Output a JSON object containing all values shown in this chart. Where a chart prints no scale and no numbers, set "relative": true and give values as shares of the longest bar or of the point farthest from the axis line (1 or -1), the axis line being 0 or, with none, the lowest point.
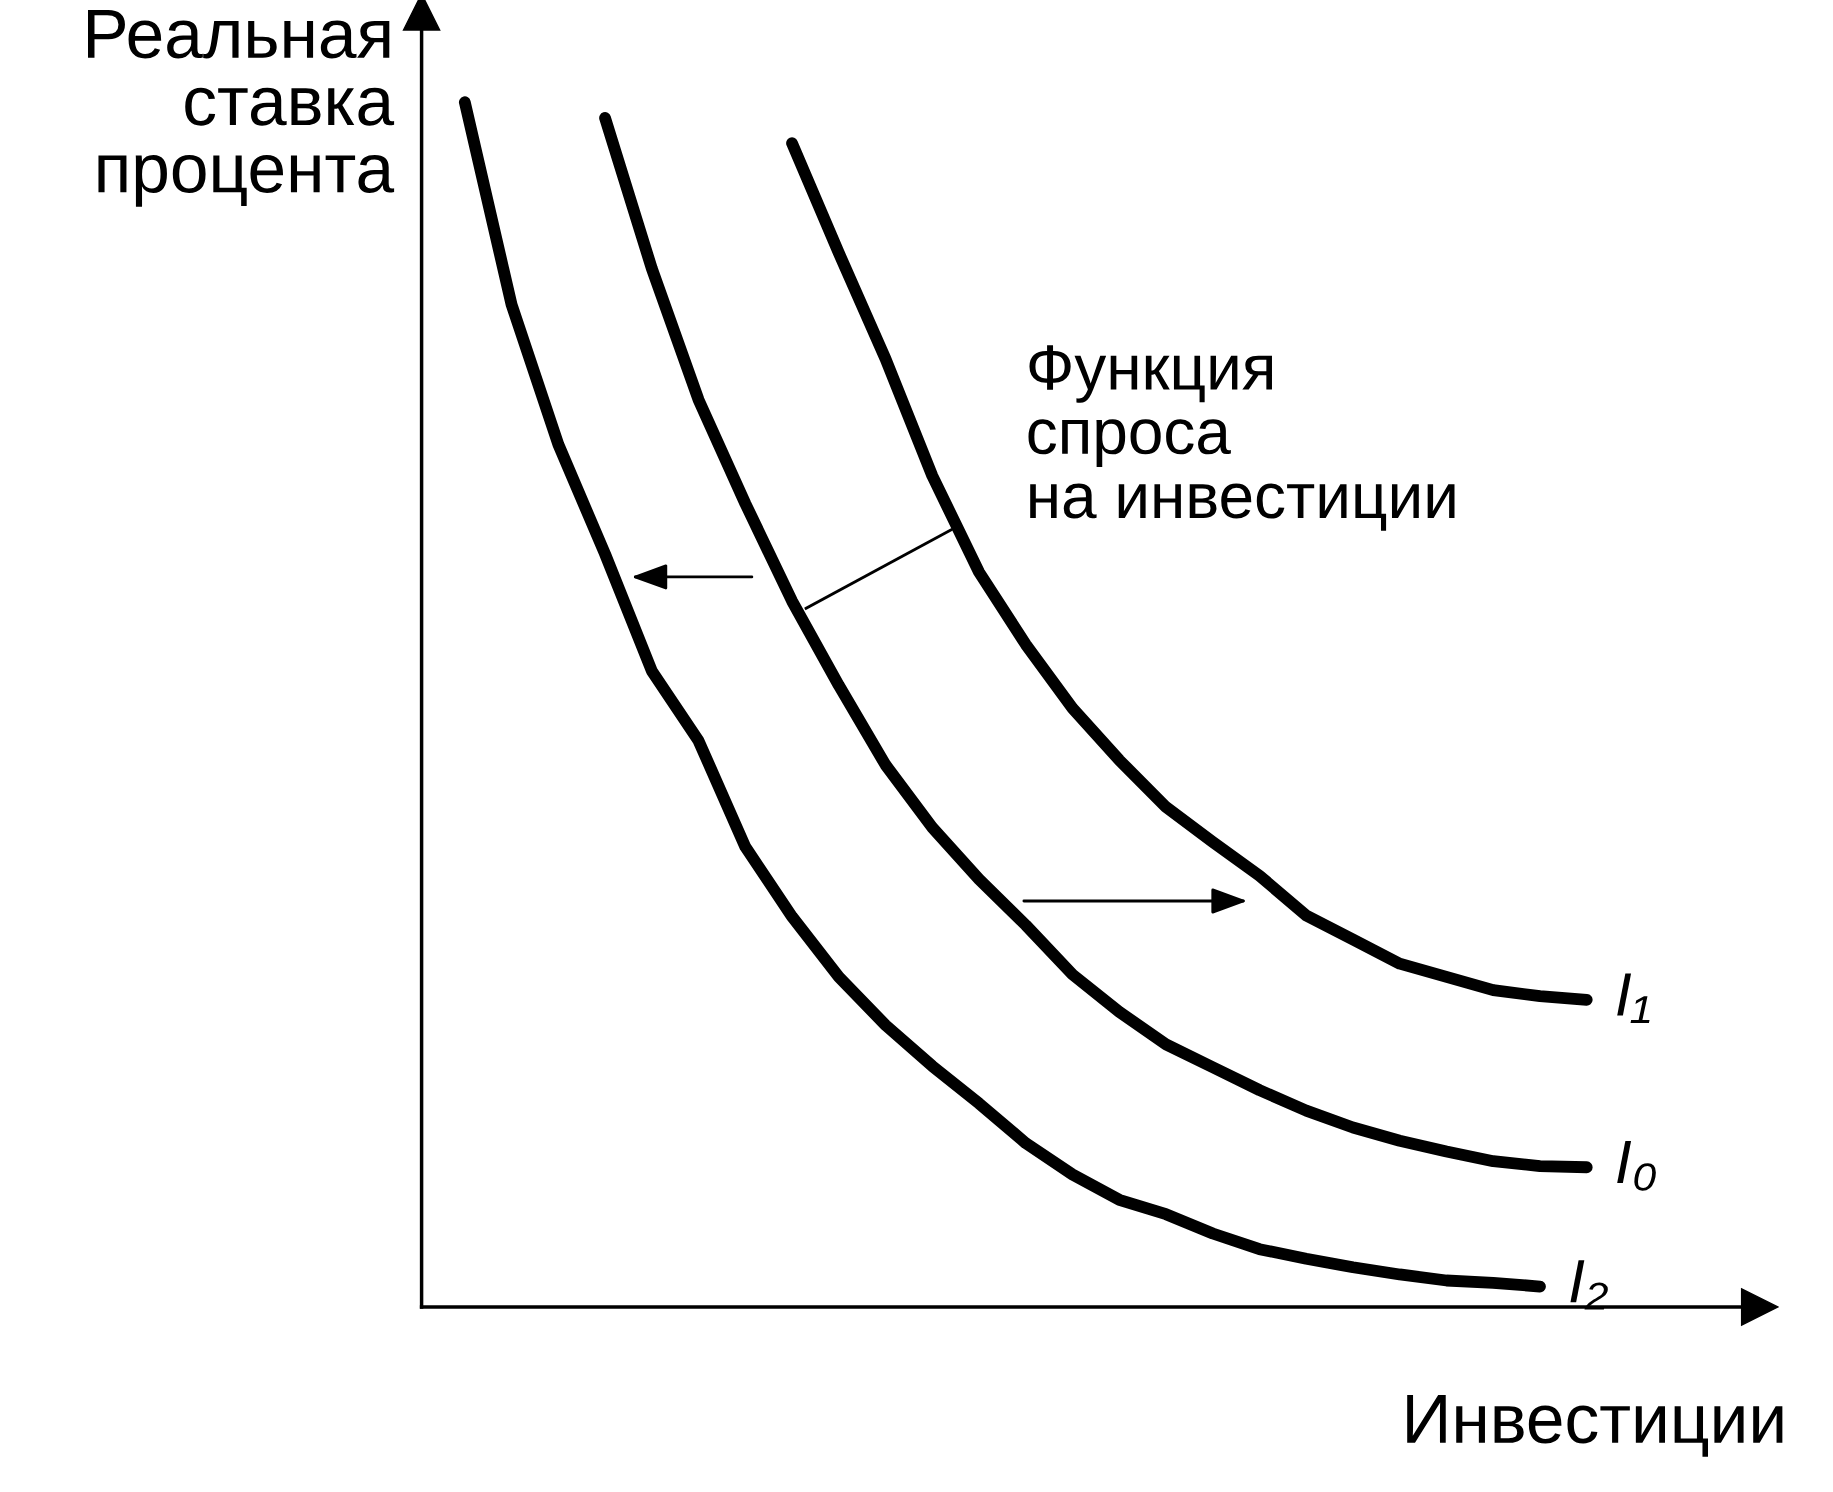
{
  "chart_data": {
    "type": "line",
    "relative": true,
    "ylabel": "Реальная\nставка\nпроцента",
    "xlabel": "Инвестиции",
    "line_style": "solid",
    "annotations": [
      "Функция\nспроса\nна инвестиции"
    ],
    "categories": [
      null,
      null,
      null,
      null,
      null,
      null,
      null,
      null,
      null,
      null,
      null,
      null,
      null,
      null,
      null,
      null,
      null,
      null,
      null,
      null,
      null,
      null,
      null,
      null,
      null
    ],
    "series": [
      {
        "name": "I₁",
        "color": "#000000",
        "values": [
          null,
          null,
          null,
          null,
          null,
          null,
          null,
          0.966,
          0.875,
          0.787,
          0.69,
          0.61,
          0.55,
          0.497,
          0.454,
          0.415,
          0.386,
          0.358,
          0.325,
          0.305,
          0.285,
          0.274,
          0.263,
          0.258,
          0.255
        ]
      },
      {
        "name": "I₀",
        "color": "#000000",
        "values": [
          null,
          null,
          null,
          0.987,
          0.862,
          0.753,
          0.667,
          0.586,
          0.516,
          0.45,
          0.398,
          0.355,
          0.317,
          0.276,
          0.245,
          0.218,
          0.199,
          0.18,
          0.163,
          0.149,
          0.138,
          0.129,
          0.121,
          0.117,
          0.116
        ]
      },
      {
        "name": "I₂",
        "color": "#000000",
        "values": [
          1.0,
          0.832,
          0.716,
          0.625,
          0.528,
          0.47,
          0.382,
          0.324,
          0.274,
          0.234,
          0.2,
          0.169,
          0.136,
          0.11,
          0.089,
          0.077,
          0.061,
          0.048,
          0.04,
          0.033,
          0.027,
          0.022,
          0.02,
          0.017,
          null
        ]
      }
    ]
  }
}
